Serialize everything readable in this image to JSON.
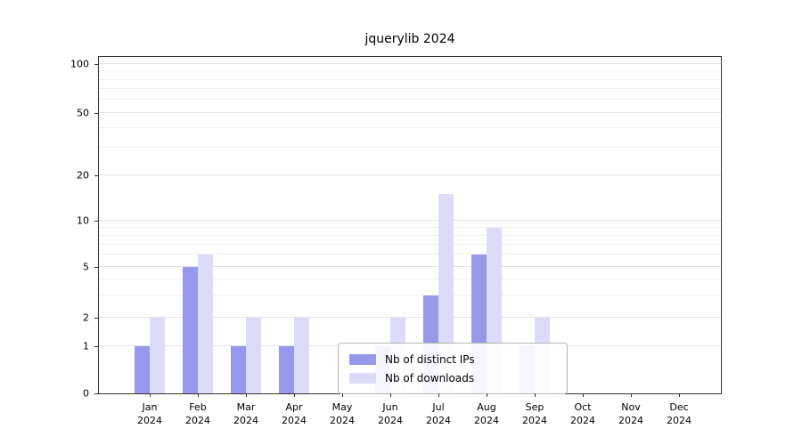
{
  "title": "jquerylib 2024",
  "chart_data": {
    "type": "bar",
    "title": "jquerylib 2024",
    "categories": [
      "Jan",
      "Feb",
      "Mar",
      "Apr",
      "May",
      "Jun",
      "Jul",
      "Aug",
      "Sep",
      "Oct",
      "Nov",
      "Dec"
    ],
    "year_label": "2024",
    "series": [
      {
        "name": "Nb of distinct IPs",
        "color": "#9898ea",
        "values": [
          1,
          5,
          1,
          1,
          0,
          1,
          3,
          6,
          1,
          0,
          0,
          0
        ]
      },
      {
        "name": "Nb of downloads",
        "color": "#dcdcf8",
        "values": [
          2,
          6,
          2,
          2,
          0,
          2,
          15,
          9,
          2,
          0,
          0,
          0
        ]
      }
    ],
    "y_axis": {
      "scale": "log-like",
      "ticks": [
        0,
        1,
        2,
        5,
        10,
        20,
        50,
        100
      ],
      "minor_gridlines": [
        3,
        4,
        6,
        7,
        8,
        9,
        30,
        40,
        60,
        70,
        80,
        90
      ]
    },
    "grid": true,
    "legend_position": "bottom-center",
    "xlabel": "",
    "ylabel": ""
  }
}
